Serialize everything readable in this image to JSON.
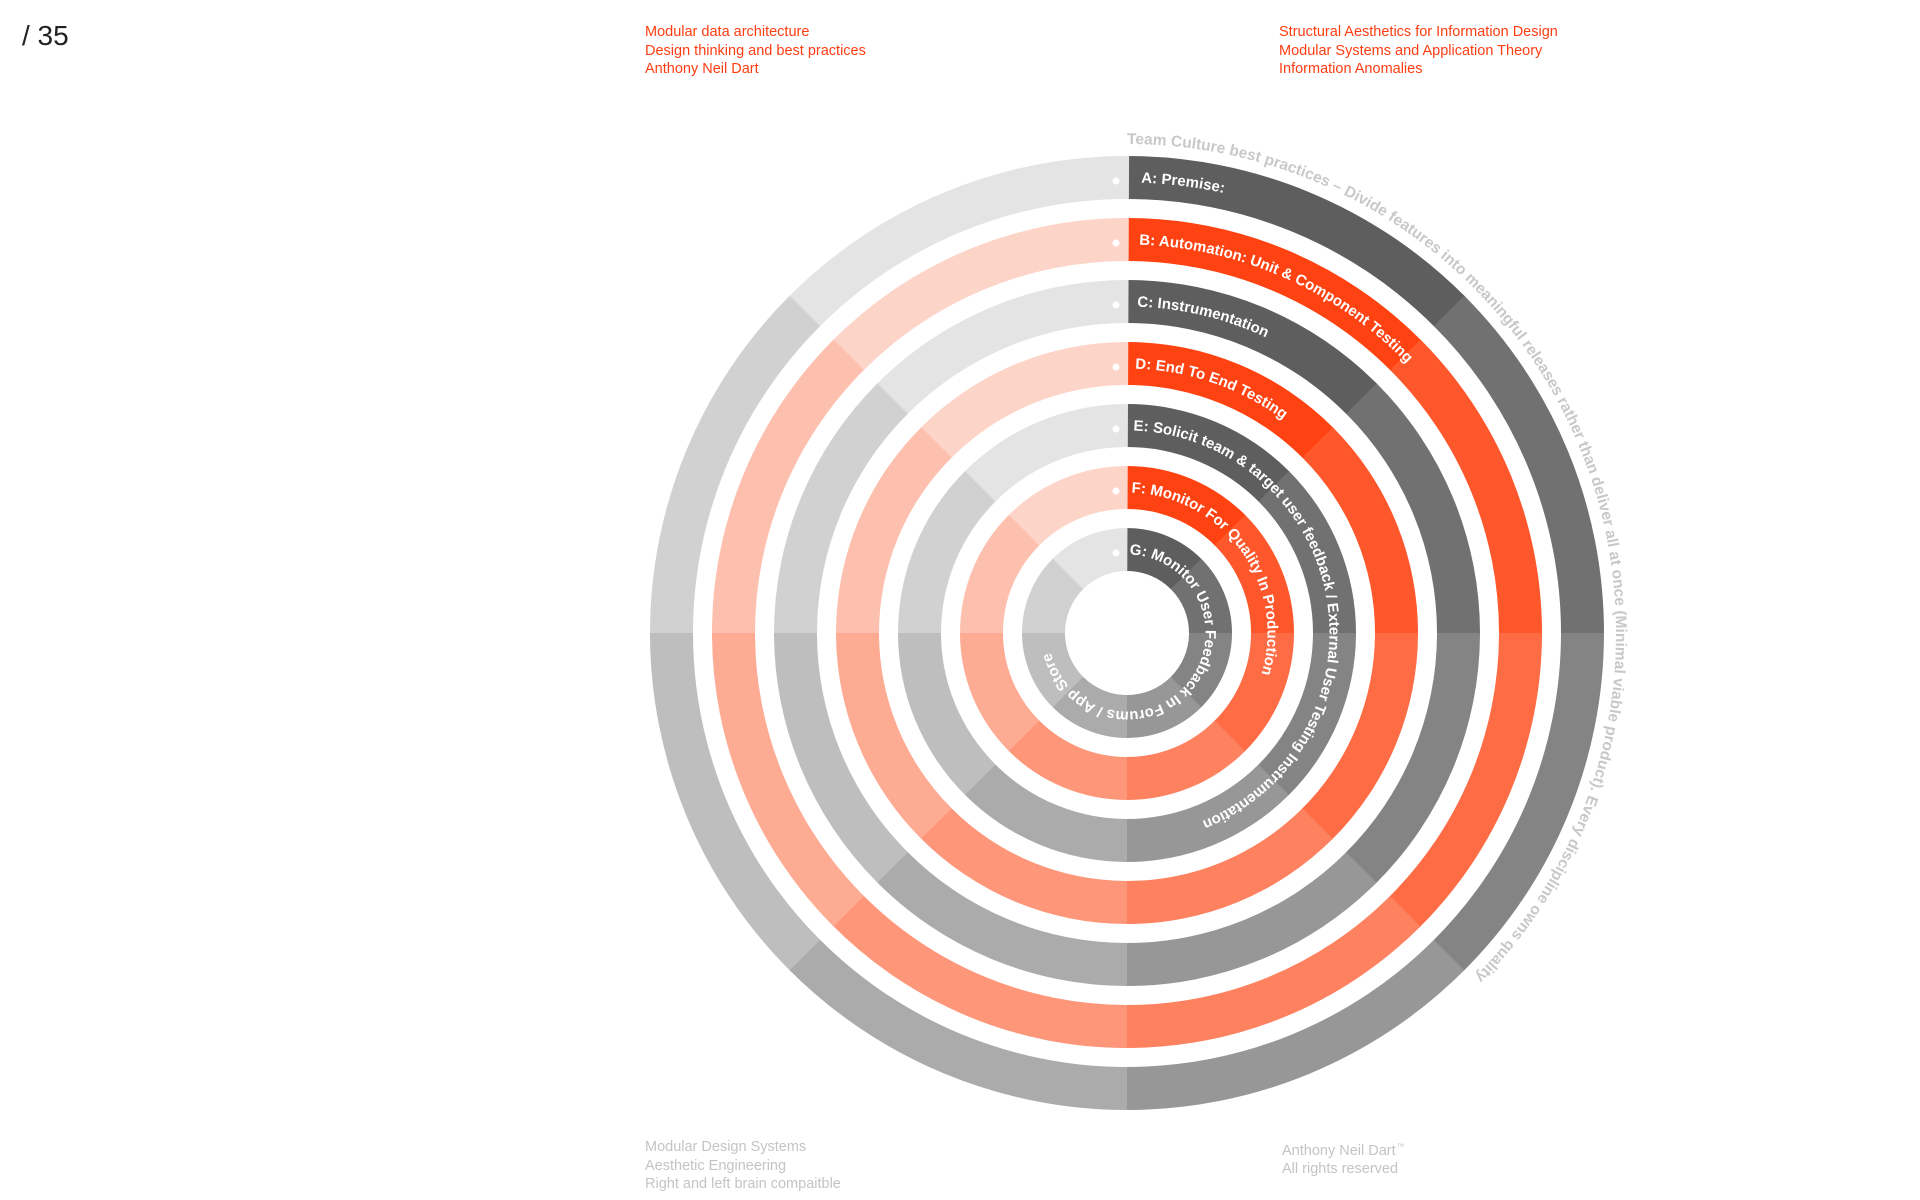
{
  "page_number": "/ 35",
  "header_left": [
    "Modular data architecture",
    "Design thinking and best practices",
    "Anthony Neil Dart"
  ],
  "header_right": [
    "Structural Aesthetics for Information Design",
    "Modular Systems and Application Theory",
    "Information Anomalies"
  ],
  "footer_left": [
    "Modular Design Systems",
    "Aesthetic Engineering",
    "Right and left brain compaitble"
  ],
  "footer_right": {
    "name": "Anthony Neil Dart",
    "trademark": "™",
    "rights": "All rights reserved"
  },
  "outer_caption": "Team Culture best practices – Divide features into meaningful releases rather than deliver all at once (Minimal viable product). Every discipline owns quality",
  "rings": [
    {
      "letter": "A",
      "label": "Premise:",
      "palette": "gray"
    },
    {
      "letter": "B",
      "label": "Automation: Unit & Component Testing",
      "palette": "orange"
    },
    {
      "letter": "C",
      "label": "Instrumentation",
      "palette": "gray"
    },
    {
      "letter": "D",
      "label": "End To End Testing",
      "palette": "orange"
    },
    {
      "letter": "E",
      "label": "Solicit team & target user feedback  / External User Testing Instrumentation",
      "palette": "gray"
    },
    {
      "letter": "F",
      "label": "Monitor For Quality In Production",
      "palette": "orange"
    },
    {
      "letter": "G",
      "label": "Monitor User Feedback In Forums  /  App Store",
      "palette": "gray"
    }
  ],
  "colors": {
    "accent": "#ff3d12",
    "gray_dark": "#5e5e5e",
    "gray_light": "#e4e4e4",
    "orange_strong": "#ff4212",
    "orange_light": "#fdd5c8",
    "caption": "#c8c8c8",
    "footer": "#c4c4c4"
  }
}
